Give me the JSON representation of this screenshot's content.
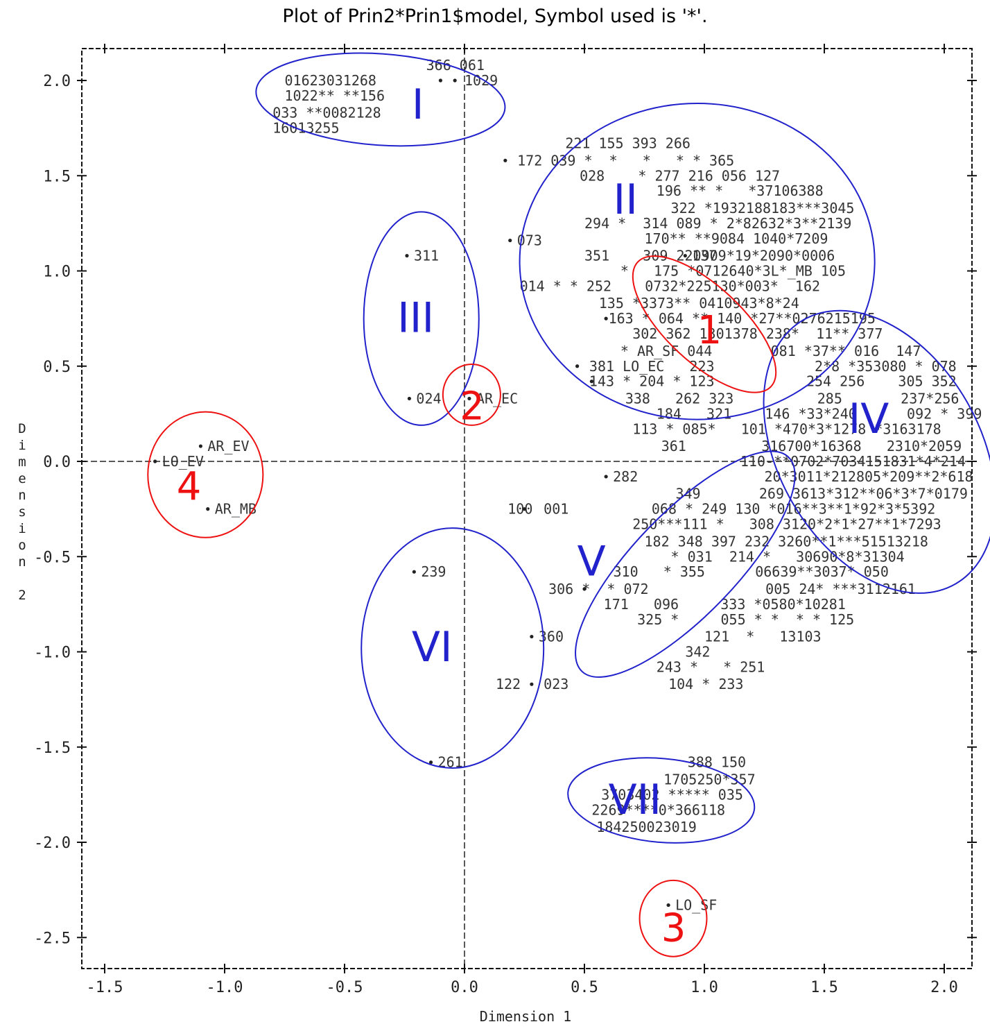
{
  "chart_data": {
    "type": "scatter",
    "title": "Plot of Prin2*Prin1$model, Symbol used is '*'.",
    "xlabel": "Dimension 1",
    "ylabel": "Dimension 2",
    "xlim": [
      -1.6,
      2.1
    ],
    "ylim": [
      -2.65,
      2.15
    ],
    "x_ticks": [
      -1.5,
      -1.0,
      -0.5,
      0.0,
      0.5,
      1.0,
      1.5,
      2.0
    ],
    "y_ticks": [
      2.0,
      1.5,
      1.0,
      0.5,
      0.0,
      -0.5,
      -1.0,
      -1.5,
      -2.0,
      -2.5
    ],
    "x_tick_labels": [
      "-1.5",
      "-1.0",
      "-0.5",
      "0.0",
      "0.5",
      "1.0",
      "1.5",
      "2.0"
    ],
    "y_tick_labels": [
      "2.0",
      "1.5",
      "1.0",
      "0.5",
      "0.0",
      "-0.5",
      "-1.0",
      "-1.5",
      "-2.0",
      "-2.5"
    ],
    "ylabel_chars": [
      "D",
      "i",
      "m",
      "e",
      "n",
      "s",
      "i",
      "o",
      "n",
      "",
      "2"
    ],
    "colors": {
      "group_ellipse": "#2222cc",
      "model_ellipse": "#ee1111",
      "axis": "#000000"
    },
    "points": [
      {
        "x": -0.1,
        "y": 2.0,
        "label": ""
      },
      {
        "x": -0.04,
        "y": 2.0,
        "label": ""
      },
      {
        "x": -0.24,
        "y": 1.08,
        "label": "311"
      },
      {
        "x": -0.23,
        "y": 0.33,
        "label": "024"
      },
      {
        "x": 0.02,
        "y": 0.33,
        "label": "AR_EC"
      },
      {
        "x": -1.1,
        "y": 0.08,
        "label": "AR_EV"
      },
      {
        "x": -1.29,
        "y": 0.0,
        "label": "LO_EV"
      },
      {
        "x": -1.07,
        "y": -0.25,
        "label": "AR_MB"
      },
      {
        "x": 0.19,
        "y": 1.16,
        "label": "073"
      },
      {
        "x": 0.17,
        "y": 1.58,
        "label": ""
      },
      {
        "x": 0.92,
        "y": 1.08,
        "label": "137"
      },
      {
        "x": 0.59,
        "y": 0.75,
        "label": ""
      },
      {
        "x": 0.47,
        "y": 0.5,
        "label": ""
      },
      {
        "x": 0.53,
        "y": 0.42,
        "label": ""
      },
      {
        "x": 0.59,
        "y": -0.08,
        "label": "282"
      },
      {
        "x": 0.25,
        "y": -0.25,
        "label": ""
      },
      {
        "x": -0.21,
        "y": -0.58,
        "label": "239"
      },
      {
        "x": 0.28,
        "y": -0.92,
        "label": "360"
      },
      {
        "x": 0.28,
        "y": -1.17,
        "label": ""
      },
      {
        "x": -0.14,
        "y": -1.58,
        "label": "261"
      },
      {
        "x": 0.5,
        "y": -0.67,
        "label": ""
      },
      {
        "x": 0.85,
        "y": -2.33,
        "label": "LO_SF"
      }
    ],
    "annotations": [
      {
        "x": -0.75,
        "y": 2.0,
        "text": "01623031268"
      },
      {
        "x": -0.75,
        "y": 1.92,
        "text": "1022** **156"
      },
      {
        "x": -0.8,
        "y": 1.83,
        "text": "033 **0082128"
      },
      {
        "x": -0.8,
        "y": 1.75,
        "text": "16013255"
      },
      {
        "x": -0.16,
        "y": 2.08,
        "text": "366 061"
      },
      {
        "x": 0.0,
        "y": 2.0,
        "text": "1029"
      },
      {
        "x": 0.42,
        "y": 1.67,
        "text": "221 155 393 266"
      },
      {
        "x": 0.22,
        "y": 1.58,
        "text": "172 039 *  *   *   * * 365"
      },
      {
        "x": 0.48,
        "y": 1.5,
        "text": "028    * 277 216 056 127"
      },
      {
        "x": 0.8,
        "y": 1.42,
        "text": "196 ** *   *37106388"
      },
      {
        "x": 0.86,
        "y": 1.33,
        "text": "322 *1932188183***3045"
      },
      {
        "x": 0.5,
        "y": 1.25,
        "text": "294 *  314 089 * 2*82632*3**2139"
      },
      {
        "x": 0.75,
        "y": 1.17,
        "text": "170** **9084 1040*7209"
      },
      {
        "x": 0.5,
        "y": 1.08,
        "text": "351    309 220909*19*2090*0006"
      },
      {
        "x": 0.65,
        "y": 1.0,
        "text": "*   175 *0712640*3L*_MB 105"
      },
      {
        "x": 0.23,
        "y": 0.92,
        "text": "014 * * 252    0732*225130*003*  162"
      },
      {
        "x": 0.56,
        "y": 0.83,
        "text": "135 *3373** 0410943*8*24"
      },
      {
        "x": 0.6,
        "y": 0.75,
        "text": "163 * 064 ** 140 *27**0276215195"
      },
      {
        "x": 0.7,
        "y": 0.67,
        "text": "302 362 1301378 238*  11** 377"
      },
      {
        "x": 0.65,
        "y": 0.58,
        "text": "* AR_SF 044       081 *37** 016  147"
      },
      {
        "x": 0.52,
        "y": 0.5,
        "text": "381 LO_EC   223            2*8 *353080 * 078"
      },
      {
        "x": 0.52,
        "y": 0.42,
        "text": "143 * 204 * 123           254 256    305 352"
      },
      {
        "x": 0.67,
        "y": 0.33,
        "text": "338   262 323          285       237*256"
      },
      {
        "x": 0.8,
        "y": 0.25,
        "text": "184   321    146 *33*240      092 * 399"
      },
      {
        "x": 0.7,
        "y": 0.17,
        "text": "113 * 085*   101 *470*3*1278 *3163178"
      },
      {
        "x": 0.82,
        "y": 0.08,
        "text": "361         316700*16368   2310*2059"
      },
      {
        "x": 1.15,
        "y": 0.0,
        "text": "110-**0702*7034151831*4*214"
      },
      {
        "x": 1.25,
        "y": -0.08,
        "text": "20*3011*212805*209**2*618"
      },
      {
        "x": 0.88,
        "y": -0.17,
        "text": "349       269 3613*312**06*3*7*0179"
      },
      {
        "x": 0.78,
        "y": -0.25,
        "text": "068 * 249 130 *016**3**1*92*3*5392"
      },
      {
        "x": 0.7,
        "y": -0.33,
        "text": "250***111 *   308 3120*2*1*27**1*7293"
      },
      {
        "x": 0.75,
        "y": -0.42,
        "text": "182 348 397 232 3260**1***51513218"
      },
      {
        "x": 0.86,
        "y": -0.5,
        "text": "* 031  214 *   30690*8*31304"
      },
      {
        "x": 0.62,
        "y": -0.58,
        "text": "310   * 355      06639**3037* 050"
      },
      {
        "x": 0.35,
        "y": -0.67,
        "text": "306 *  * 072              005 24* ***3112161"
      },
      {
        "x": 0.58,
        "y": -0.75,
        "text": "171   096     333 *0580*10281"
      },
      {
        "x": 0.72,
        "y": -0.83,
        "text": "325 *     055 * *  * * 125"
      },
      {
        "x": 1.0,
        "y": -0.92,
        "text": "121  *   13103"
      },
      {
        "x": 0.92,
        "y": -1.0,
        "text": "342"
      },
      {
        "x": 0.8,
        "y": -1.08,
        "text": "243 *   * 251"
      },
      {
        "x": 0.85,
        "y": -1.17,
        "text": "104 * 233"
      },
      {
        "x": 0.18,
        "y": -0.25,
        "text": "100"
      },
      {
        "x": 0.33,
        "y": -0.25,
        "text": "001"
      },
      {
        "x": 0.13,
        "y": -1.17,
        "text": "122"
      },
      {
        "x": 0.33,
        "y": -1.17,
        "text": "023"
      },
      {
        "x": 0.93,
        "y": -1.58,
        "text": "388 150"
      },
      {
        "x": 0.83,
        "y": -1.67,
        "text": "1705250*357"
      },
      {
        "x": 0.57,
        "y": -1.75,
        "text": "3703402 ***** 035"
      },
      {
        "x": 0.53,
        "y": -1.83,
        "text": "2269****0*366118"
      },
      {
        "x": 0.55,
        "y": -1.92,
        "text": "184250023019"
      }
    ],
    "group_ellipses": [
      {
        "label": "I",
        "cx": -0.35,
        "cy": 1.9,
        "rx": 0.52,
        "ry": 0.24,
        "angle": -4,
        "label_x": -0.22,
        "label_y": 1.8
      },
      {
        "label": "II",
        "cx": 0.97,
        "cy": 1.05,
        "rx": 0.74,
        "ry": 0.83,
        "angle": 0,
        "label_x": 0.62,
        "label_y": 1.3
      },
      {
        "label": "III",
        "cx": -0.18,
        "cy": 0.75,
        "rx": 0.24,
        "ry": 0.56,
        "angle": 0,
        "label_x": -0.28,
        "label_y": 0.68
      },
      {
        "label": "IV",
        "cx": 1.73,
        "cy": 0.05,
        "rx": 0.42,
        "ry": 0.8,
        "angle": 30,
        "label_x": 1.6,
        "label_y": 0.15
      },
      {
        "label": "V",
        "cx": 0.92,
        "cy": -0.54,
        "rx": 0.62,
        "ry": 0.27,
        "angle": 46,
        "label_x": 0.47,
        "label_y": -0.6
      },
      {
        "label": "VI",
        "cx": -0.05,
        "cy": -0.98,
        "rx": 0.38,
        "ry": 0.63,
        "angle": 0,
        "label_x": -0.22,
        "label_y": -1.05
      },
      {
        "label": "VII",
        "cx": 0.82,
        "cy": -1.78,
        "rx": 0.39,
        "ry": 0.22,
        "angle": -5,
        "label_x": 0.6,
        "label_y": -1.85
      }
    ],
    "model_ellipses": [
      {
        "label": "1",
        "cx": 1.0,
        "cy": 0.72,
        "rx": 0.38,
        "ry": 0.2,
        "angle": -43,
        "label_x": 0.97,
        "label_y": 0.62
      },
      {
        "label": "2",
        "cx": 0.03,
        "cy": 0.35,
        "rx": 0.12,
        "ry": 0.16,
        "angle": 0,
        "label_x": -0.02,
        "label_y": 0.22
      },
      {
        "label": "3",
        "cx": 0.87,
        "cy": -2.4,
        "rx": 0.14,
        "ry": 0.2,
        "angle": 0,
        "label_x": 0.82,
        "label_y": -2.52
      },
      {
        "label": "4",
        "cx": -1.08,
        "cy": -0.07,
        "rx": 0.24,
        "ry": 0.33,
        "angle": 0,
        "label_x": -1.2,
        "label_y": -0.2
      }
    ]
  }
}
